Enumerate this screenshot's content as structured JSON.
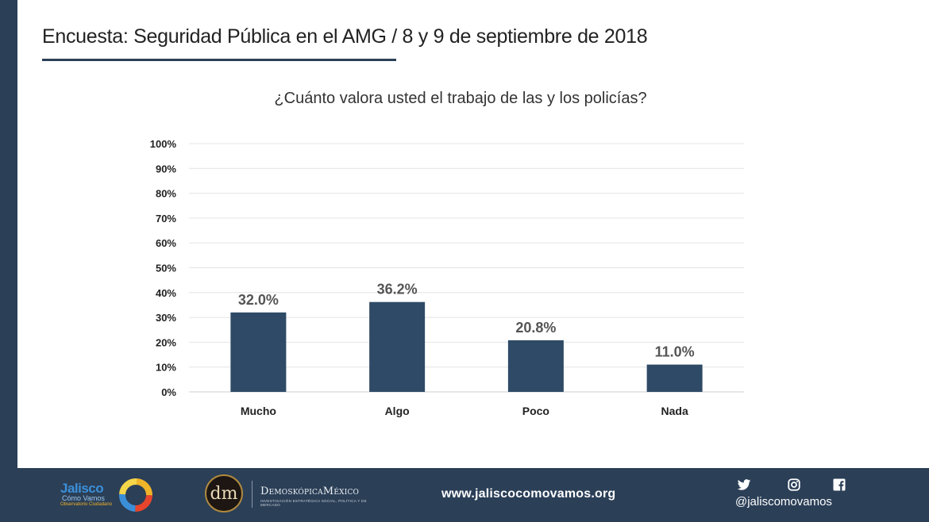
{
  "header": {
    "title": "Encuesta: Seguridad Pública en el AMG / 8 y 9 de septiembre de 2018"
  },
  "chart_data": {
    "type": "bar",
    "title": "¿Cuánto valora usted el trabajo de las y los policías?",
    "categories": [
      "Mucho",
      "Algo",
      "Poco",
      "Nada"
    ],
    "values": [
      32.0,
      36.2,
      20.8,
      11.0
    ],
    "value_labels": [
      "32.0%",
      "36.2%",
      "20.8%",
      "11.0%"
    ],
    "yticks": [
      "0%",
      "10%",
      "20%",
      "30%",
      "40%",
      "50%",
      "60%",
      "70%",
      "80%",
      "90%",
      "100%"
    ],
    "ylim": [
      0,
      100
    ],
    "grid": true,
    "legend": "none",
    "bar_color": "#2e4a66"
  },
  "footer": {
    "logo1": {
      "line1": "Jalisco",
      "line2": "Cómo Vamos",
      "line3": "Observatorio Ciudadano"
    },
    "logo2": {
      "monogram": "dm",
      "name": "DemoskópicaMéxico",
      "tagline": "INVESTIGACIÓN ESTRATÉGICA SOCIAL, POLÍTICA Y DE MERCADO"
    },
    "website": "www.jaliscocomovamos.org",
    "social_handle": "@jaliscomovamos",
    "icons": [
      "twitter-icon",
      "instagram-icon",
      "facebook-icon"
    ]
  },
  "colors": {
    "navy": "#2b3f57",
    "bar": "#2e4a66"
  }
}
